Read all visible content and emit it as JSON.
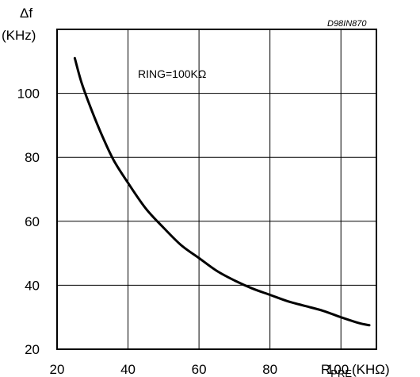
{
  "chart_data": {
    "type": "line",
    "title": "",
    "ylabel_symbol": "Δf",
    "ylabel_unit": "(KHz)",
    "xlabel_main": "R",
    "xlabel_sub": "PRE",
    "xlabel_unit": "(KHΩ)",
    "annotation": "RING=100KΩ",
    "doc_code": "D98IN870",
    "xlim": [
      20,
      110
    ],
    "ylim": [
      20,
      120
    ],
    "x_ticks": [
      20,
      40,
      60,
      80,
      100
    ],
    "y_ticks": [
      20,
      40,
      60,
      80,
      100
    ],
    "grid": true,
    "series": [
      {
        "x": [
          25,
          27,
          30,
          33,
          36,
          40,
          45,
          50,
          55,
          60,
          65,
          70,
          75,
          80,
          85,
          90,
          95,
          100,
          105,
          108
        ],
        "y": [
          111,
          103,
          94,
          86,
          79,
          72,
          64,
          58,
          52.5,
          48.5,
          44.5,
          41.5,
          39,
          37,
          35,
          33.5,
          32,
          30,
          28.2,
          27.5
        ]
      }
    ]
  }
}
